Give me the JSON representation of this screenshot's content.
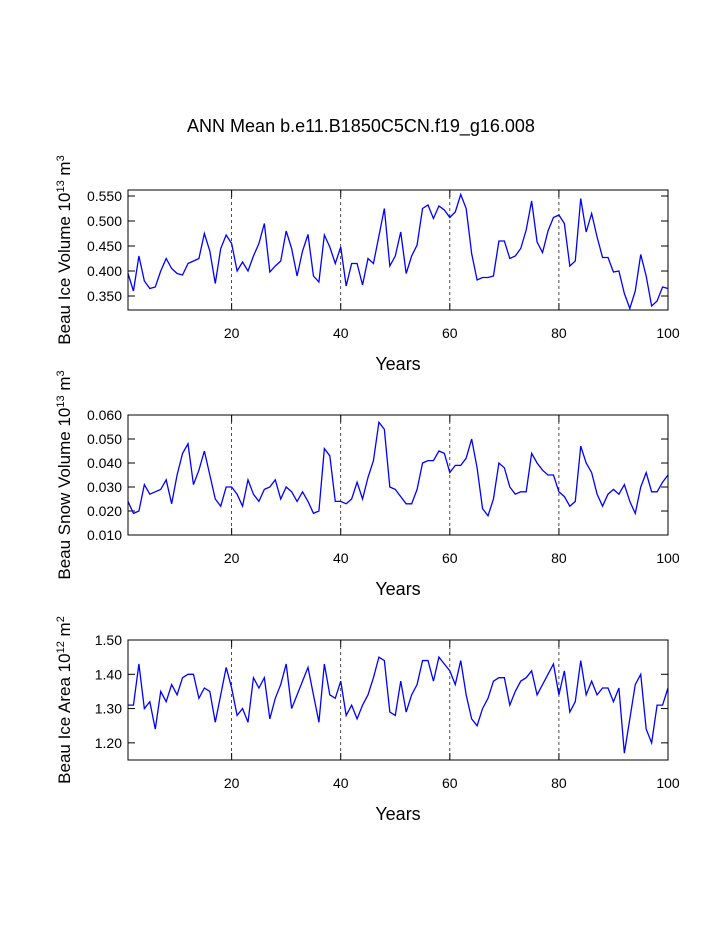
{
  "title": "ANN Mean b.e11.B1850C5CN.f19_g16.008",
  "chart_data": [
    {
      "type": "line",
      "ylabel": [
        "Beau Ice Volume 10",
        "13",
        " m",
        "3"
      ],
      "xlabel": "Years",
      "x": [
        1,
        2,
        3,
        4,
        5,
        6,
        7,
        8,
        9,
        10,
        11,
        12,
        13,
        14,
        15,
        16,
        17,
        18,
        19,
        20,
        21,
        22,
        23,
        24,
        25,
        26,
        27,
        28,
        29,
        30,
        31,
        32,
        33,
        34,
        35,
        36,
        37,
        38,
        39,
        40,
        41,
        42,
        43,
        44,
        45,
        46,
        47,
        48,
        49,
        50,
        51,
        52,
        53,
        54,
        55,
        56,
        57,
        58,
        59,
        60,
        61,
        62,
        63,
        64,
        65,
        66,
        67,
        68,
        69,
        70,
        71,
        72,
        73,
        74,
        75,
        76,
        77,
        78,
        79,
        80,
        81,
        82,
        83,
        84,
        85,
        86,
        87,
        88,
        89,
        90,
        91,
        92,
        93,
        94,
        95,
        96,
        97,
        98,
        99,
        100
      ],
      "series": [
        {
          "color": "#0000ff",
          "values": [
            0.395,
            0.36,
            0.43,
            0.38,
            0.365,
            0.368,
            0.4,
            0.425,
            0.405,
            0.395,
            0.392,
            0.415,
            0.42,
            0.425,
            0.475,
            0.44,
            0.375,
            0.445,
            0.472,
            0.455,
            0.4,
            0.418,
            0.4,
            0.43,
            0.455,
            0.495,
            0.398,
            0.41,
            0.42,
            0.48,
            0.445,
            0.39,
            0.44,
            0.473,
            0.39,
            0.378,
            0.472,
            0.448,
            0.415,
            0.448,
            0.37,
            0.415,
            0.415,
            0.372,
            0.425,
            0.415,
            0.47,
            0.525,
            0.41,
            0.43,
            0.478,
            0.395,
            0.43,
            0.452,
            0.525,
            0.532,
            0.505,
            0.53,
            0.522,
            0.507,
            0.518,
            0.553,
            0.525,
            0.435,
            0.382,
            0.387,
            0.387,
            0.39,
            0.46,
            0.46,
            0.425,
            0.43,
            0.445,
            0.482,
            0.54,
            0.458,
            0.437,
            0.48,
            0.507,
            0.512,
            0.495,
            0.41,
            0.42,
            0.545,
            0.478,
            0.515,
            0.468,
            0.427,
            0.427,
            0.398,
            0.4,
            0.355,
            0.325,
            0.36,
            0.433,
            0.39,
            0.33,
            0.34,
            0.368,
            0.365
          ]
        }
      ],
      "xlim": [
        1,
        100
      ],
      "xticks": [
        20,
        40,
        60,
        80,
        100
      ],
      "xgrid": true,
      "ylim": [
        0.322,
        0.562
      ],
      "yticks": [
        {
          "value": 0.35,
          "label": "0.350"
        },
        {
          "value": 0.4,
          "label": "0.400"
        },
        {
          "value": 0.45,
          "label": "0.450"
        },
        {
          "value": 0.5,
          "label": "0.500"
        },
        {
          "value": 0.55,
          "label": "0.550"
        }
      ]
    },
    {
      "type": "line",
      "ylabel": [
        "Beau Snow Volume 10",
        "13",
        " m",
        "3"
      ],
      "xlabel": "Years",
      "x": [
        1,
        2,
        3,
        4,
        5,
        6,
        7,
        8,
        9,
        10,
        11,
        12,
        13,
        14,
        15,
        16,
        17,
        18,
        19,
        20,
        21,
        22,
        23,
        24,
        25,
        26,
        27,
        28,
        29,
        30,
        31,
        32,
        33,
        34,
        35,
        36,
        37,
        38,
        39,
        40,
        41,
        42,
        43,
        44,
        45,
        46,
        47,
        48,
        49,
        50,
        51,
        52,
        53,
        54,
        55,
        56,
        57,
        58,
        59,
        60,
        61,
        62,
        63,
        64,
        65,
        66,
        67,
        68,
        69,
        70,
        71,
        72,
        73,
        74,
        75,
        76,
        77,
        78,
        79,
        80,
        81,
        82,
        83,
        84,
        85,
        86,
        87,
        88,
        89,
        90,
        91,
        92,
        93,
        94,
        95,
        96,
        97,
        98,
        99,
        100
      ],
      "series": [
        {
          "color": "#0000ff",
          "values": [
            0.024,
            0.019,
            0.02,
            0.031,
            0.027,
            0.028,
            0.029,
            0.033,
            0.023,
            0.035,
            0.044,
            0.048,
            0.031,
            0.037,
            0.045,
            0.035,
            0.025,
            0.022,
            0.03,
            0.03,
            0.027,
            0.022,
            0.033,
            0.027,
            0.024,
            0.029,
            0.03,
            0.033,
            0.025,
            0.03,
            0.028,
            0.024,
            0.028,
            0.024,
            0.019,
            0.02,
            0.046,
            0.043,
            0.024,
            0.024,
            0.023,
            0.025,
            0.032,
            0.025,
            0.034,
            0.041,
            0.057,
            0.054,
            0.03,
            0.029,
            0.026,
            0.023,
            0.023,
            0.029,
            0.04,
            0.041,
            0.041,
            0.045,
            0.044,
            0.036,
            0.039,
            0.039,
            0.042,
            0.05,
            0.038,
            0.021,
            0.018,
            0.025,
            0.04,
            0.038,
            0.03,
            0.027,
            0.028,
            0.028,
            0.044,
            0.04,
            0.037,
            0.035,
            0.035,
            0.028,
            0.026,
            0.022,
            0.024,
            0.047,
            0.04,
            0.036,
            0.027,
            0.022,
            0.027,
            0.029,
            0.027,
            0.031,
            0.024,
            0.019,
            0.03,
            0.036,
            0.028,
            0.028,
            0.032,
            0.035
          ]
        }
      ],
      "xlim": [
        1,
        100
      ],
      "xticks": [
        20,
        40,
        60,
        80,
        100
      ],
      "xgrid": true,
      "ylim": [
        0.01,
        0.06
      ],
      "yticks": [
        {
          "value": 0.01,
          "label": "0.010"
        },
        {
          "value": 0.02,
          "label": "0.020"
        },
        {
          "value": 0.03,
          "label": "0.030"
        },
        {
          "value": 0.04,
          "label": "0.040"
        },
        {
          "value": 0.05,
          "label": "0.050"
        },
        {
          "value": 0.06,
          "label": "0.060"
        }
      ]
    },
    {
      "type": "line",
      "ylabel": [
        "Beau Ice Area 10",
        "12",
        " m",
        "2"
      ],
      "xlabel": "Years",
      "x": [
        1,
        2,
        3,
        4,
        5,
        6,
        7,
        8,
        9,
        10,
        11,
        12,
        13,
        14,
        15,
        16,
        17,
        18,
        19,
        20,
        21,
        22,
        23,
        24,
        25,
        26,
        27,
        28,
        29,
        30,
        31,
        32,
        33,
        34,
        35,
        36,
        37,
        38,
        39,
        40,
        41,
        42,
        43,
        44,
        45,
        46,
        47,
        48,
        49,
        50,
        51,
        52,
        53,
        54,
        55,
        56,
        57,
        58,
        59,
        60,
        61,
        62,
        63,
        64,
        65,
        66,
        67,
        68,
        69,
        70,
        71,
        72,
        73,
        74,
        75,
        76,
        77,
        78,
        79,
        80,
        81,
        82,
        83,
        84,
        85,
        86,
        87,
        88,
        89,
        90,
        91,
        92,
        93,
        94,
        95,
        96,
        97,
        98,
        99,
        100
      ],
      "series": [
        {
          "color": "#0000ff",
          "values": [
            1.31,
            1.31,
            1.43,
            1.3,
            1.32,
            1.24,
            1.35,
            1.32,
            1.37,
            1.34,
            1.39,
            1.4,
            1.4,
            1.33,
            1.36,
            1.35,
            1.26,
            1.34,
            1.42,
            1.36,
            1.28,
            1.3,
            1.26,
            1.39,
            1.36,
            1.39,
            1.27,
            1.33,
            1.37,
            1.43,
            1.3,
            1.34,
            1.38,
            1.42,
            1.34,
            1.26,
            1.43,
            1.34,
            1.33,
            1.38,
            1.28,
            1.31,
            1.27,
            1.31,
            1.34,
            1.39,
            1.45,
            1.44,
            1.29,
            1.28,
            1.38,
            1.29,
            1.34,
            1.37,
            1.44,
            1.44,
            1.38,
            1.45,
            1.43,
            1.41,
            1.37,
            1.44,
            1.34,
            1.27,
            1.25,
            1.3,
            1.33,
            1.38,
            1.39,
            1.39,
            1.31,
            1.35,
            1.38,
            1.39,
            1.41,
            1.34,
            1.37,
            1.4,
            1.43,
            1.34,
            1.41,
            1.29,
            1.32,
            1.44,
            1.34,
            1.38,
            1.34,
            1.36,
            1.36,
            1.32,
            1.36,
            1.17,
            1.27,
            1.37,
            1.4,
            1.24,
            1.2,
            1.31,
            1.31,
            1.36
          ]
        }
      ],
      "xlim": [
        1,
        100
      ],
      "xticks": [
        20,
        40,
        60,
        80,
        100
      ],
      "xgrid": true,
      "ylim": [
        1.15,
        1.5
      ],
      "yticks": [
        {
          "value": 1.2,
          "label": "1.20"
        },
        {
          "value": 1.3,
          "label": "1.30"
        },
        {
          "value": 1.4,
          "label": "1.40"
        },
        {
          "value": 1.5,
          "label": "1.50"
        }
      ]
    }
  ]
}
